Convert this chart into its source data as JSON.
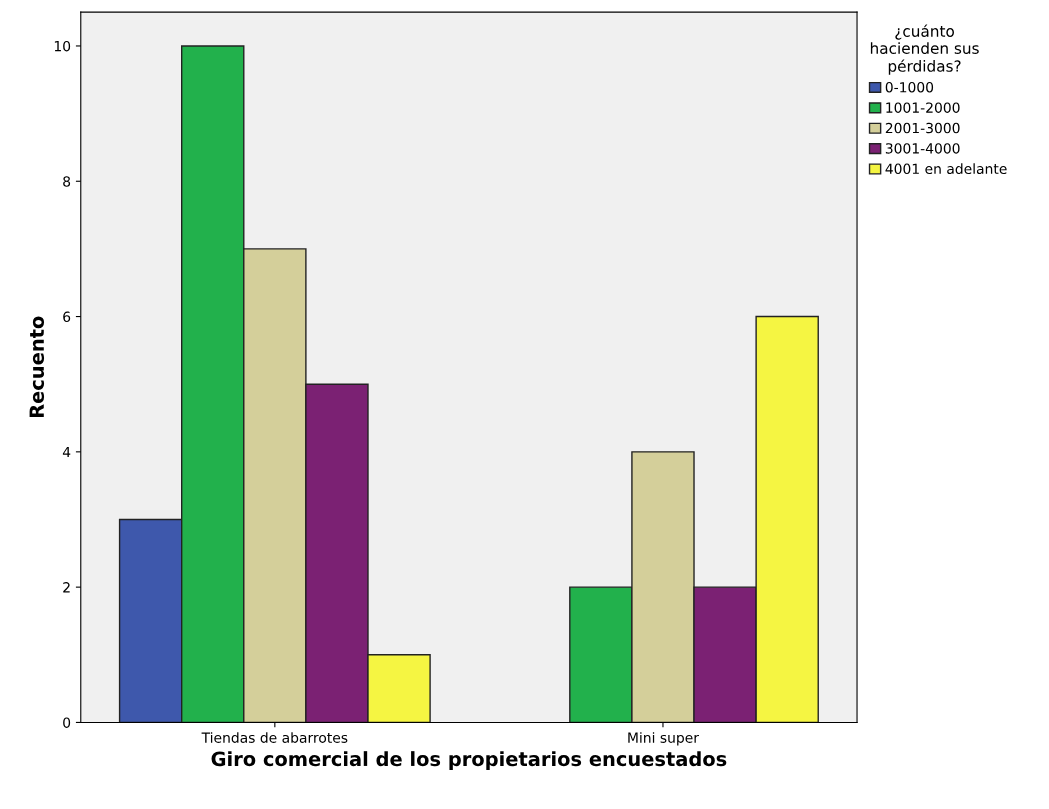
{
  "chart_data": {
    "type": "bar",
    "xlabel": "Giro comercial de los propietarios encuestados",
    "ylabel": "Recuento",
    "legend_title": "¿cuánto\nhacienden sus\npérdidas?",
    "categories": [
      "Tiendas de abarrotes",
      "Mini super"
    ],
    "series": [
      {
        "name": "0-1000",
        "color": "#3e58ac",
        "values": [
          3,
          null
        ]
      },
      {
        "name": "1001-2000",
        "color": "#22b14c",
        "values": [
          10,
          2
        ]
      },
      {
        "name": "2001-3000",
        "color": "#d4cf9a",
        "values": [
          7,
          4
        ]
      },
      {
        "name": "3001-4000",
        "color": "#7b2173",
        "values": [
          5,
          2
        ]
      },
      {
        "name": "4001 en adelante",
        "color": "#f5f542",
        "values": [
          1,
          6
        ]
      }
    ],
    "ylim": [
      0,
      10.5
    ],
    "yticks": [
      0,
      2,
      4,
      6,
      8,
      10
    ],
    "grid": false,
    "legend": "top right"
  }
}
